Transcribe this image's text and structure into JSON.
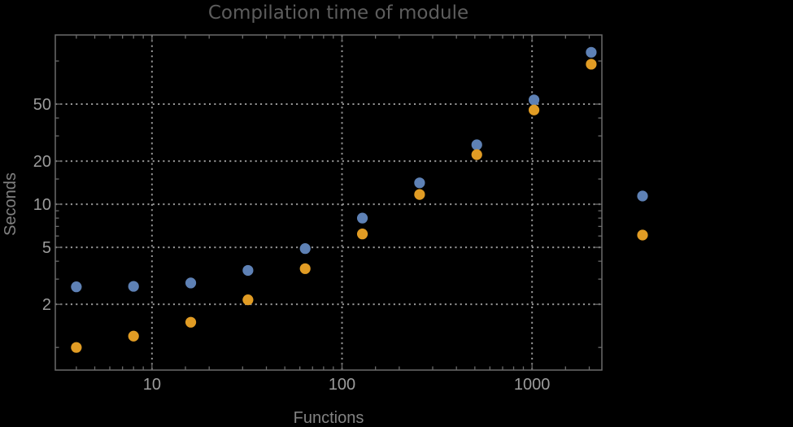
{
  "title": "Compilation time of module",
  "chart_data": {
    "type": "scatter",
    "title": "Compilation time of module",
    "xlabel": "Functions",
    "ylabel": "Seconds",
    "x_scale": "log",
    "y_scale": "log",
    "xlim": [
      3.1,
      2330
    ],
    "ylim": [
      0.695,
      152
    ],
    "grid": "dotted lines at labeled ticks",
    "legend_position": "right of frame, markers only (no visible labels)",
    "x_major_ticks": [
      10,
      100,
      1000
    ],
    "x_tick_labels": [
      "10",
      "100",
      "1000"
    ],
    "x_minor_ticks": [
      4,
      5,
      6,
      7,
      8,
      9,
      15,
      20,
      30,
      40,
      50,
      60,
      70,
      80,
      90,
      150,
      200,
      300,
      400,
      500,
      600,
      700,
      800,
      900,
      1500,
      2000
    ],
    "y_major_ticks": [
      2,
      5,
      10,
      20,
      50
    ],
    "y_tick_labels": [
      "2",
      "5",
      "10",
      "20",
      "50"
    ],
    "y_minor_ticks": [
      1,
      3,
      4,
      6,
      7,
      8,
      9,
      15,
      30,
      40,
      100
    ],
    "x": [
      4,
      8,
      16,
      32,
      64,
      128,
      256,
      512,
      1024,
      2048
    ],
    "series": [
      {
        "name": "series-1-blue",
        "color": "#5e81b5",
        "values": [
          2.65,
          2.67,
          2.82,
          3.45,
          4.9,
          8.0,
          14.1,
          26.0,
          53.5,
          115
        ]
      },
      {
        "name": "series-2-orange",
        "color": "#e19c24",
        "values": [
          1.0,
          1.2,
          1.5,
          2.15,
          3.55,
          6.2,
          11.7,
          22.2,
          45.5,
          95.0
        ]
      }
    ]
  },
  "colors": {
    "background": "#000000",
    "frame": "#6a6a6a",
    "grid": "#969696",
    "tick_label": "#9c9c9c",
    "axis_label": "#828282",
    "title": "#5d5d5d"
  }
}
